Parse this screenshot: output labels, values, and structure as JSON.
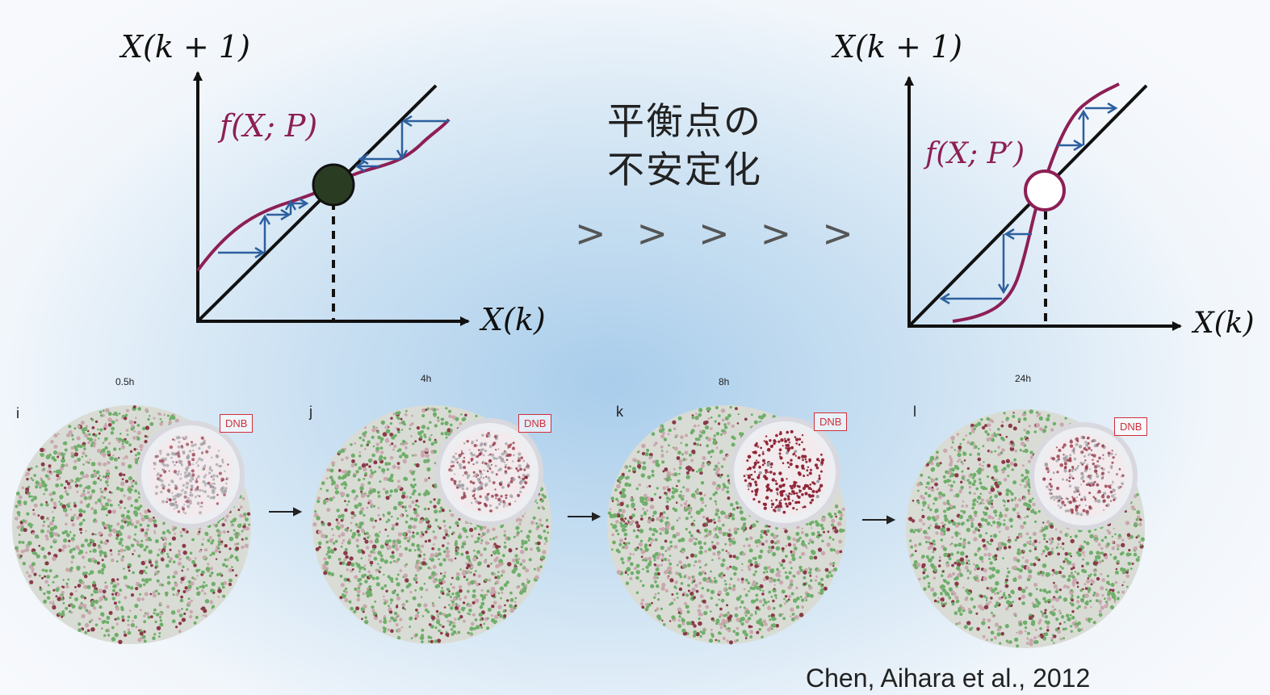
{
  "left_diagram": {
    "y_label": "X(k + 1)",
    "x_label": "X(k)",
    "func_label": "f(X; P)",
    "point": "stable"
  },
  "right_diagram": {
    "y_label": "X(k + 1)",
    "x_label": "X(k)",
    "func_label": "f(X; P′)",
    "point": "unstable"
  },
  "transition": {
    "line1": "平衡点の",
    "line2": "不安定化",
    "chevrons": [
      ">",
      ">",
      ">",
      ">",
      ">"
    ]
  },
  "colors": {
    "curve": "#8d1f55",
    "arrows": "#2c5f9e",
    "stable_point": "#2a3d22",
    "axis": "#111111"
  },
  "networks": [
    {
      "letter": "i",
      "time": "0.5h",
      "badge": "DNB",
      "core_level": 0.25
    },
    {
      "letter": "j",
      "time": "4h",
      "badge": "DNB",
      "core_level": 0.4
    },
    {
      "letter": "k",
      "time": "8h",
      "badge": "DNB",
      "core_level": 0.95
    },
    {
      "letter": "l",
      "time": "24h",
      "badge": "DNB",
      "core_level": 0.45
    }
  ],
  "flow_arrow": "→",
  "citation": "Chen, Aihara et al., 2012"
}
